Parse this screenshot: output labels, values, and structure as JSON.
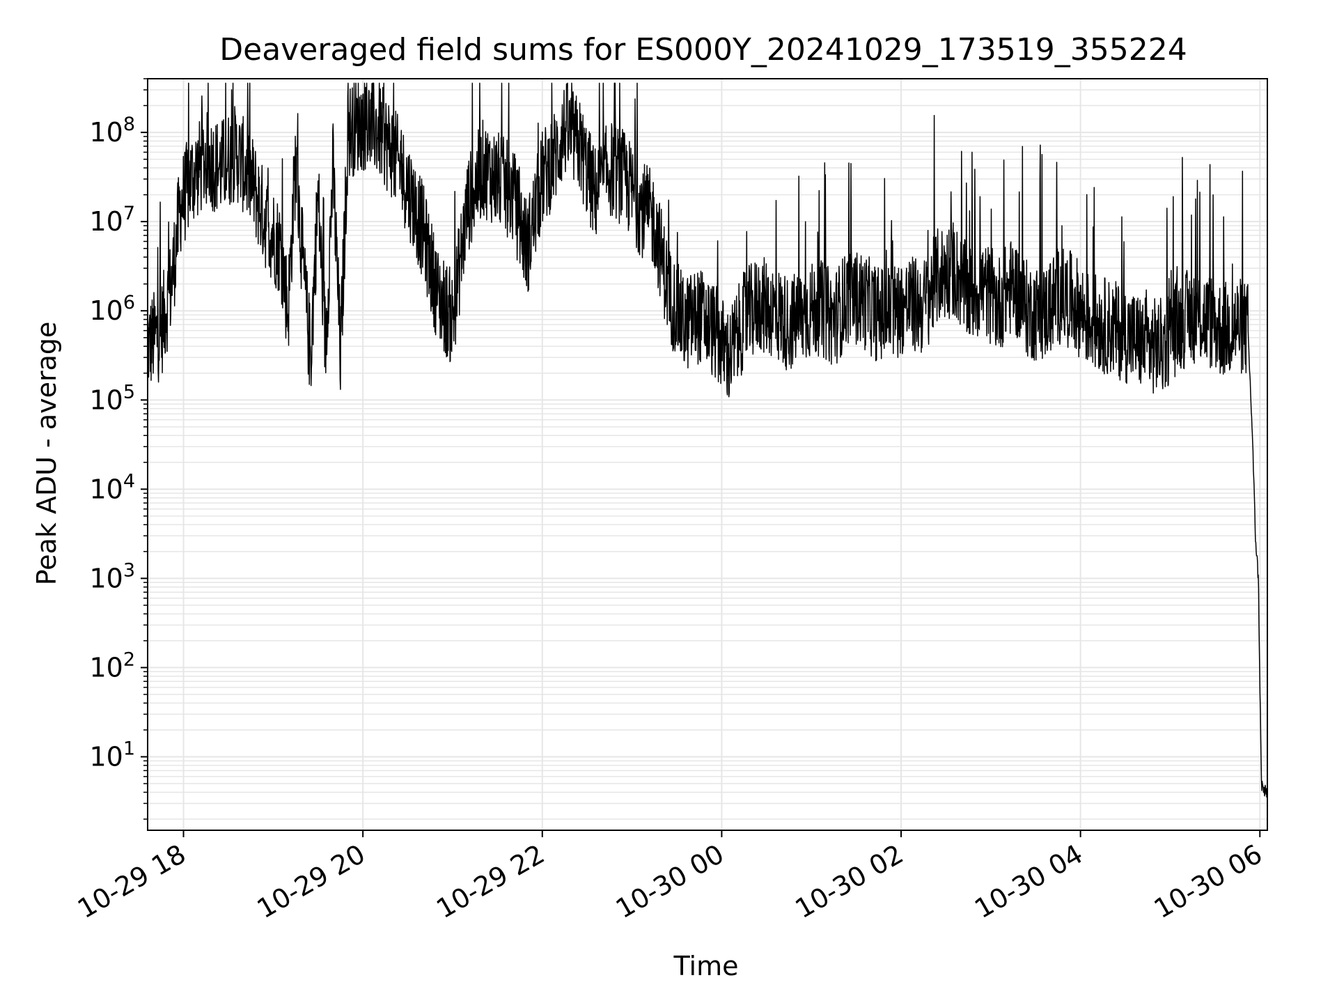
{
  "chart_data": {
    "type": "line",
    "title": "Deaveraged field sums for ES000Y_20241029_173519_355224",
    "xlabel": "Time",
    "ylabel": "Peak ADU - average",
    "yscale": "log",
    "ylim": [
      1.5,
      400000000
    ],
    "xlim": [
      "2024-10-29 17:36",
      "2024-10-30 06:05"
    ],
    "grid": true,
    "line_color": "#000000",
    "grid_color": "#e6e6e6",
    "x_ticks": [
      {
        "value": "2024-10-29 18:00",
        "label": "10-29 18"
      },
      {
        "value": "2024-10-29 20:00",
        "label": "10-29 20"
      },
      {
        "value": "2024-10-29 22:00",
        "label": "10-29 22"
      },
      {
        "value": "2024-10-30 00:00",
        "label": "10-30 00"
      },
      {
        "value": "2024-10-30 02:00",
        "label": "10-30 02"
      },
      {
        "value": "2024-10-30 04:00",
        "label": "10-30 04"
      },
      {
        "value": "2024-10-30 06:00",
        "label": "10-30 06"
      }
    ],
    "y_ticks": [
      {
        "value": 10,
        "base": "10",
        "exp": "1"
      },
      {
        "value": 100,
        "base": "10",
        "exp": "2"
      },
      {
        "value": 1000,
        "base": "10",
        "exp": "3"
      },
      {
        "value": 10000,
        "base": "10",
        "exp": "4"
      },
      {
        "value": 100000,
        "base": "10",
        "exp": "5"
      },
      {
        "value": 1000000,
        "base": "10",
        "exp": "6"
      },
      {
        "value": 10000000,
        "base": "10",
        "exp": "7"
      },
      {
        "value": 100000000,
        "base": "10",
        "exp": "8"
      }
    ],
    "series": [
      {
        "x": [
          "2024-10-29 17:36",
          "2024-10-29 17:45",
          "2024-10-29 17:52",
          "2024-10-29 17:58",
          "2024-10-29 18:05",
          "2024-10-29 18:15",
          "2024-10-29 18:25",
          "2024-10-29 18:35",
          "2024-10-29 18:45",
          "2024-10-29 18:55",
          "2024-10-29 19:05",
          "2024-10-29 19:10",
          "2024-10-29 19:15",
          "2024-10-29 19:20",
          "2024-10-29 19:25",
          "2024-10-29 19:30",
          "2024-10-29 19:35",
          "2024-10-29 19:40",
          "2024-10-29 19:45",
          "2024-10-29 19:50",
          "2024-10-29 19:55",
          "2024-10-29 20:00",
          "2024-10-29 20:10",
          "2024-10-29 20:20",
          "2024-10-29 20:30",
          "2024-10-29 20:40",
          "2024-10-29 20:50",
          "2024-10-29 21:00",
          "2024-10-29 21:10",
          "2024-10-29 21:20",
          "2024-10-29 21:30",
          "2024-10-29 21:40",
          "2024-10-29 21:50",
          "2024-10-29 22:00",
          "2024-10-29 22:10",
          "2024-10-29 22:15",
          "2024-10-29 22:25",
          "2024-10-29 22:35",
          "2024-10-29 22:45",
          "2024-10-29 22:55",
          "2024-10-29 23:05",
          "2024-10-29 23:15",
          "2024-10-29 23:25",
          "2024-10-29 23:35",
          "2024-10-29 23:45",
          "2024-10-29 23:55",
          "2024-10-30 00:05",
          "2024-10-30 00:15",
          "2024-10-30 00:25",
          "2024-10-30 00:35",
          "2024-10-30 00:45",
          "2024-10-30 00:55",
          "2024-10-30 01:05",
          "2024-10-30 01:15",
          "2024-10-30 01:25",
          "2024-10-30 01:35",
          "2024-10-30 01:45",
          "2024-10-30 01:55",
          "2024-10-30 02:05",
          "2024-10-30 02:15",
          "2024-10-30 02:25",
          "2024-10-30 02:35",
          "2024-10-30 02:45",
          "2024-10-30 02:55",
          "2024-10-30 03:05",
          "2024-10-30 03:15",
          "2024-10-30 03:25",
          "2024-10-30 03:35",
          "2024-10-30 03:45",
          "2024-10-30 03:55",
          "2024-10-30 04:05",
          "2024-10-30 04:15",
          "2024-10-30 04:25",
          "2024-10-30 04:35",
          "2024-10-30 04:45",
          "2024-10-30 04:55",
          "2024-10-30 05:05",
          "2024-10-30 05:15",
          "2024-10-30 05:25",
          "2024-10-30 05:35",
          "2024-10-30 05:45",
          "2024-10-30 05:52",
          "2024-10-30 05:55",
          "2024-10-30 05:57",
          "2024-10-30 05:59",
          "2024-10-30 06:01",
          "2024-10-30 06:03",
          "2024-10-30 06:05"
        ],
        "y": [
          400000,
          600000,
          2000000,
          15000000,
          30000000,
          50000000,
          40000000,
          60000000,
          30000000,
          10000000,
          5000000,
          1000000,
          50000000,
          3000000,
          300000,
          20000000,
          400000,
          40000000,
          300000,
          100000000,
          120000000,
          130000000,
          110000000,
          60000000,
          25000000,
          8000000,
          1500000,
          800000,
          15000000,
          40000000,
          30000000,
          20000000,
          5000000,
          30000000,
          60000000,
          110000000,
          70000000,
          20000000,
          40000000,
          30000000,
          15000000,
          10000000,
          1500000,
          700000,
          900000,
          600000,
          300000,
          800000,
          1200000,
          1000000,
          700000,
          900000,
          1100000,
          800000,
          1500000,
          1300000,
          900000,
          1000000,
          1200000,
          1100000,
          2500000,
          3000000,
          1500000,
          1800000,
          1200000,
          2000000,
          1000000,
          900000,
          1500000,
          1300000,
          800000,
          700000,
          600000,
          500000,
          400000,
          400000,
          700000,
          900000,
          800000,
          600000,
          700000,
          600000,
          40000,
          3000,
          1000,
          5,
          4,
          4
        ]
      }
    ]
  }
}
